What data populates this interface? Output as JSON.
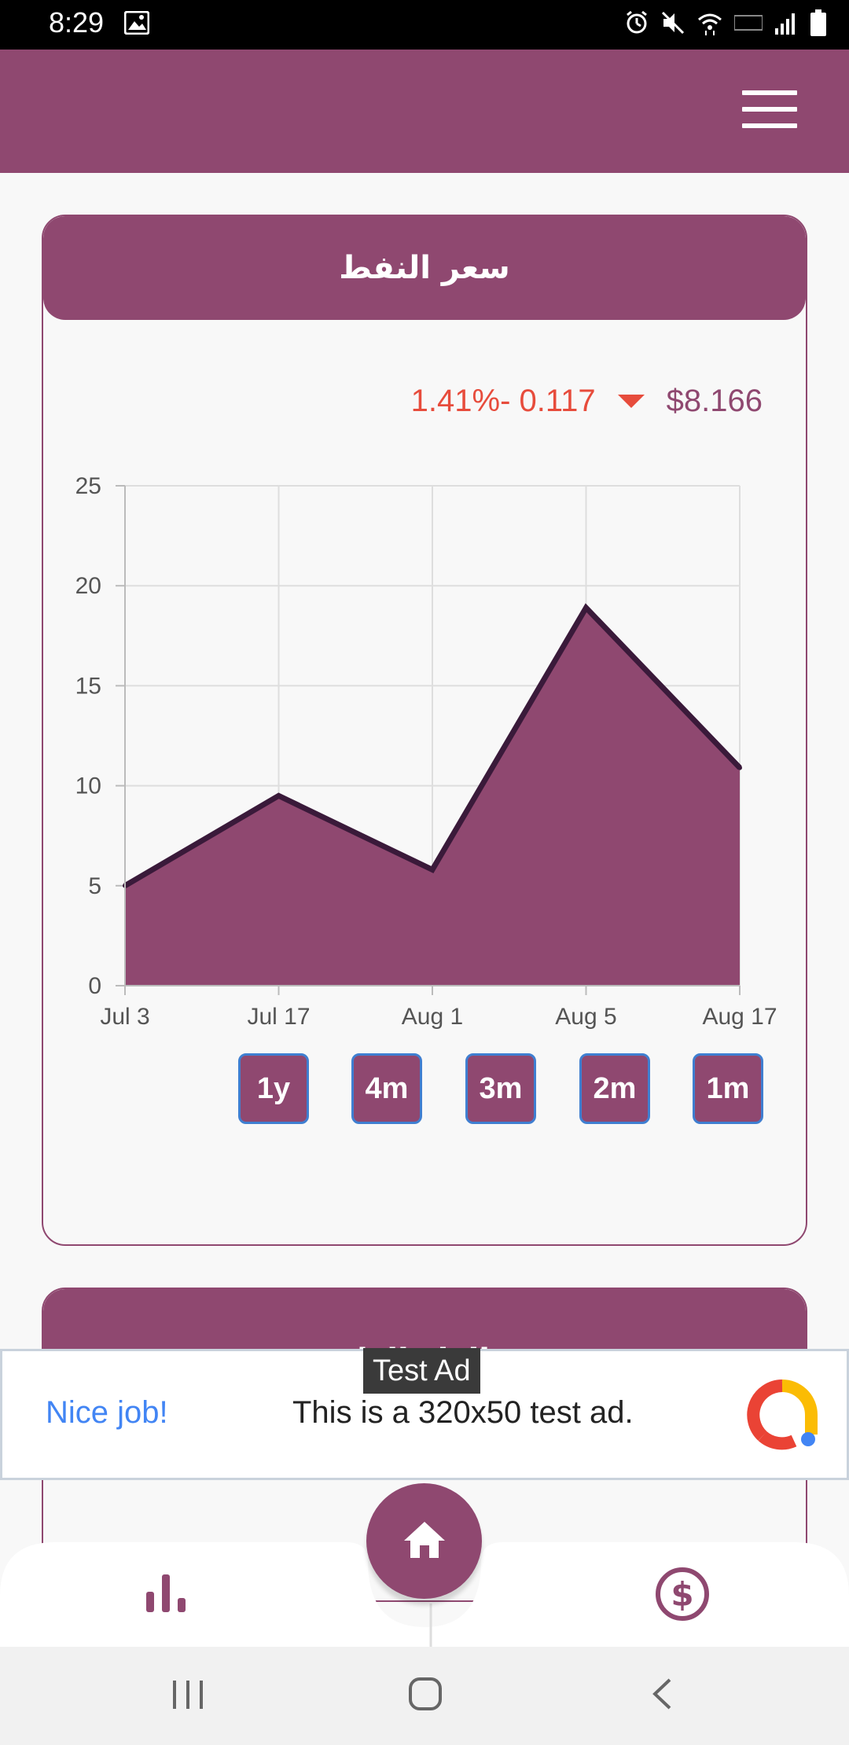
{
  "status_bar": {
    "time": "8:29"
  },
  "app_bar": {
    "menu_icon": "hamburger-menu-icon"
  },
  "oil_card": {
    "title": "سعر النفط",
    "price": "$8.166",
    "change": "1.41%- 0.117",
    "direction": "down",
    "range_buttons": [
      "1y",
      "4m",
      "3m",
      "2m",
      "1m"
    ]
  },
  "gas_card": {
    "title": "سعر الغاز الطبيعي"
  },
  "chart_data": {
    "type": "area",
    "categories": [
      "Jul 3",
      "Jul 17",
      "Aug 1",
      "Aug 5",
      "Aug 17"
    ],
    "values": [
      5,
      9.5,
      5.8,
      18.9,
      10.9
    ],
    "y_ticks": [
      "0",
      "5",
      "10",
      "15",
      "20",
      "25"
    ],
    "ylim": [
      0,
      25
    ],
    "grid": true,
    "fill_color": "#8f4870",
    "line_color": "#3a1a3a"
  },
  "ad": {
    "label": "Test Ad",
    "title": "Nice job!",
    "text": "This is a 320x50 test ad."
  },
  "bottom_nav": {
    "left_icon": "bar-chart-icon",
    "center_icon": "home-icon",
    "right_icon": "dollar-icon"
  },
  "colors": {
    "primary": "#8f4870",
    "negative": "#e74c3c",
    "ad_accent": "#4285f4"
  }
}
